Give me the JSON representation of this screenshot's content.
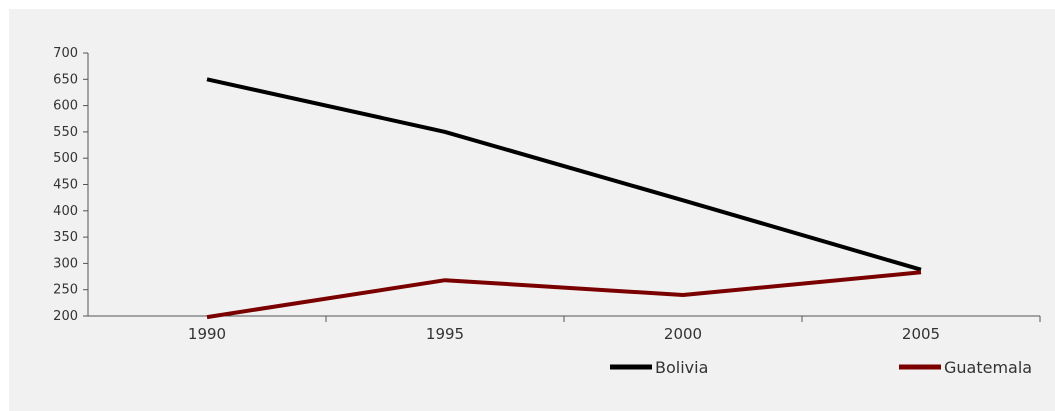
{
  "colors": {
    "background": "#f1f1f2",
    "axis": "#555555",
    "text": "#333333"
  },
  "chart_data": {
    "type": "line",
    "title": "",
    "xlabel": "",
    "ylabel": "",
    "x": [
      "1990",
      "1995",
      "2000",
      "2005"
    ],
    "ylim": [
      200,
      700
    ],
    "yticks": [
      200,
      250,
      300,
      350,
      400,
      450,
      500,
      550,
      600,
      650,
      700
    ],
    "grid": false,
    "legend_position": "bottom-right",
    "series": [
      {
        "name": "Bolivia",
        "color": "#000000",
        "values": [
          650,
          550,
          420,
          288
        ]
      },
      {
        "name": "Guatemala",
        "color": "#7a0000",
        "values": [
          198,
          268,
          240,
          283
        ]
      }
    ]
  }
}
